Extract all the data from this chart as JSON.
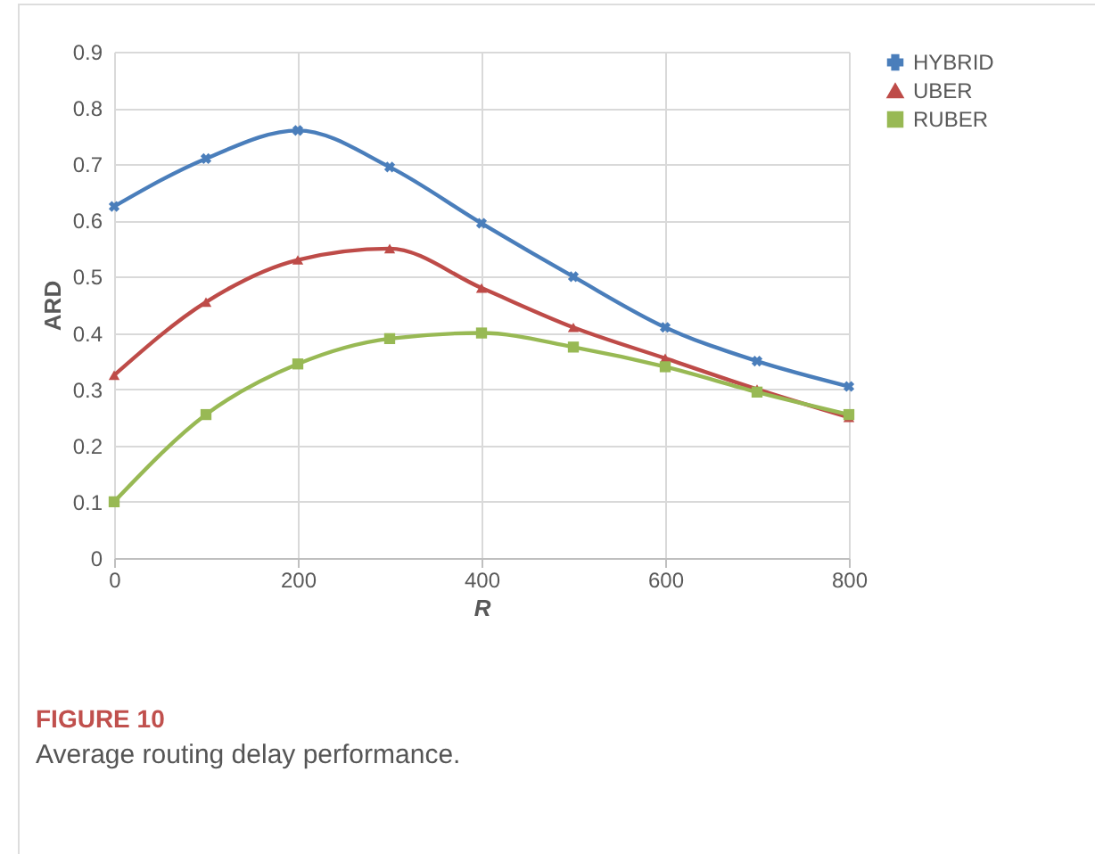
{
  "chart_data": {
    "type": "line",
    "xlabel": "R",
    "ylabel": "ARD",
    "x": [
      0,
      100,
      200,
      300,
      400,
      500,
      600,
      700,
      800
    ],
    "series": [
      {
        "name": "HYBRID",
        "color": "#4a7ebb",
        "marker": "cross",
        "values": [
          0.625,
          0.71,
          0.76,
          0.695,
          0.595,
          0.5,
          0.41,
          0.35,
          0.305
        ]
      },
      {
        "name": "UBER",
        "color": "#be4b48",
        "marker": "triangle",
        "values": [
          0.325,
          0.455,
          0.53,
          0.55,
          0.48,
          0.41,
          0.355,
          0.3,
          0.25
        ]
      },
      {
        "name": "RUBER",
        "color": "#98b954",
        "marker": "square",
        "values": [
          0.1,
          0.255,
          0.345,
          0.39,
          0.4,
          0.375,
          0.34,
          0.295,
          0.255
        ]
      }
    ],
    "xlim": [
      0,
      800
    ],
    "xticks": [
      0,
      200,
      400,
      600,
      800
    ],
    "ylim": [
      0,
      0.9
    ],
    "yticks": [
      0,
      0.1,
      0.2,
      0.3,
      0.4,
      0.5,
      0.6,
      0.7,
      0.8,
      0.9
    ],
    "grid": true,
    "legend": "right",
    "line_style": "solid",
    "annotations": [
      "FIGURE 10",
      "Average routing delay performance."
    ]
  }
}
